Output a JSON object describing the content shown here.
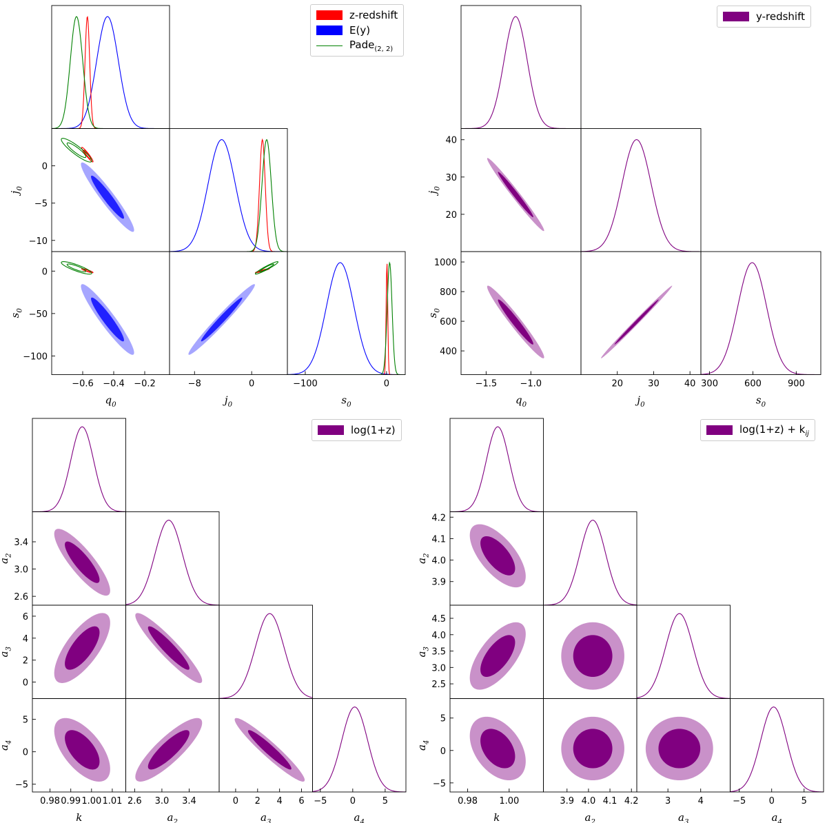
{
  "colors": {
    "z_redshift": "#ff0000",
    "E_y": "#0000ff",
    "pade": "#008000",
    "purple": "#800080",
    "purple_light": "#c991c9"
  },
  "legends": {
    "top_left": {
      "entries": [
        {
          "label": "z-redshift",
          "style": "patch",
          "color_key": "z_redshift"
        },
        {
          "label": "E(y)",
          "style": "patch",
          "color_key": "E_y"
        },
        {
          "label": "Pade",
          "sub": "(2, 2)",
          "style": "line",
          "color_key": "pade"
        }
      ]
    },
    "top_right": {
      "entries": [
        {
          "label": "y-redshift",
          "style": "patch",
          "color_key": "purple"
        }
      ]
    },
    "bottom_left": {
      "entries": [
        {
          "label": "log(1+z)",
          "style": "patch",
          "color_key": "purple"
        }
      ]
    },
    "bottom_right": {
      "entries": [
        {
          "label": "log(1+z) + k",
          "sub": "ij",
          "style": "patch",
          "color_key": "purple"
        }
      ]
    }
  },
  "chart_data": [
    {
      "type": "corner",
      "panel": "top-left",
      "parameters": [
        {
          "name": "q",
          "sub": "0",
          "range": [
            -0.8,
            -0.04
          ],
          "ticks": [
            -0.6,
            -0.4,
            -0.2
          ],
          "tick_labels": [
            "−0.6",
            "−0.4",
            "−0.2"
          ]
        },
        {
          "name": "j",
          "sub": "0",
          "range": [
            -11.5,
            5
          ],
          "ticks": [
            -10,
            -5,
            0
          ],
          "tick_labels": [
            "−10",
            "−5",
            "0"
          ],
          "x_ticks": [
            -8,
            0
          ],
          "x_tick_labels": [
            "−8",
            "0"
          ]
        },
        {
          "name": "s",
          "sub": "0",
          "range": [
            -122,
            23
          ],
          "ticks": [
            -100,
            -50,
            0
          ],
          "tick_labels": [
            "−100",
            "−50",
            "0"
          ],
          "x_ticks": [
            -100,
            0
          ],
          "x_tick_labels": [
            "−100",
            "0"
          ]
        }
      ],
      "series": [
        {
          "name": "z-redshift",
          "color_key": "z_redshift",
          "filled": false,
          "mean": [
            -0.57,
            1.5,
            0.5
          ],
          "std": [
            0.015,
            0.4,
            1.0
          ],
          "corr": [
            [
              1,
              -0.95,
              -0.9
            ],
            [
              -0.95,
              1,
              0.95
            ],
            [
              -0.9,
              0.95,
              1
            ]
          ]
        },
        {
          "name": "E(y)",
          "color_key": "E_y",
          "filled": true,
          "mean": [
            -0.44,
            -4.2,
            -57
          ],
          "std": [
            0.07,
            1.9,
            17
          ],
          "corr": [
            [
              1,
              -0.95,
              -0.94
            ],
            [
              -0.95,
              1,
              0.98
            ],
            [
              -0.94,
              0.98,
              1
            ]
          ]
        },
        {
          "name": "Pade(2,2)",
          "color_key": "pade",
          "filled": false,
          "mean": [
            -0.64,
            2.1,
            3.8
          ],
          "std": [
            0.04,
            0.65,
            3.0
          ],
          "corr": [
            [
              1,
              -0.9,
              -0.85
            ],
            [
              -0.9,
              1,
              0.95
            ],
            [
              -0.85,
              0.95,
              1
            ]
          ]
        }
      ]
    },
    {
      "type": "corner",
      "panel": "top-right",
      "parameters": [
        {
          "name": "q",
          "sub": "0",
          "range": [
            -1.78,
            -0.44
          ],
          "ticks": [
            -1.5,
            -1.0
          ],
          "tick_labels": [
            "−1.5",
            "−1.0"
          ]
        },
        {
          "name": "j",
          "sub": "0",
          "range": [
            10,
            43
          ],
          "ticks": [
            20,
            30,
            40
          ],
          "tick_labels": [
            "20",
            "30",
            "40"
          ]
        },
        {
          "name": "s",
          "sub": "0",
          "range": [
            240,
            1070
          ],
          "ticks": [
            400,
            600,
            800,
            1000
          ],
          "tick_labels": [
            "400",
            "600",
            "800",
            "1000"
          ],
          "x_ticks": [
            300,
            600,
            900
          ],
          "x_tick_labels": [
            "300",
            "600",
            "900"
          ]
        }
      ],
      "series": [
        {
          "name": "y-redshift",
          "color_key": "purple",
          "filled": true,
          "mean": [
            -1.17,
            25.3,
            595
          ],
          "std": [
            0.13,
            4.0,
            100
          ],
          "corr": [
            [
              1,
              -0.985,
              -0.97
            ],
            [
              -0.985,
              1,
              0.996
            ],
            [
              -0.97,
              0.996,
              1
            ]
          ]
        }
      ]
    },
    {
      "type": "corner",
      "panel": "bottom-left",
      "parameters": [
        {
          "name": "k",
          "sub": "",
          "range": [
            0.9715,
            1.0165
          ],
          "ticks": [
            0.98,
            0.99,
            1.0,
            1.01
          ],
          "tick_labels": [
            "0.98",
            "0.99",
            "1.00",
            "1.01"
          ]
        },
        {
          "name": "a",
          "sub": "2",
          "range": [
            2.47,
            3.84
          ],
          "ticks": [
            2.6,
            3.0,
            3.4
          ],
          "tick_labels": [
            "2.6",
            "3.0",
            "3.4"
          ]
        },
        {
          "name": "a",
          "sub": "3",
          "range": [
            -1.5,
            7.0
          ],
          "ticks": [
            0,
            2,
            4,
            6
          ],
          "tick_labels": [
            "0",
            "2",
            "4",
            "6"
          ],
          "x_ticks": [
            0,
            2,
            4,
            6
          ],
          "x_tick_labels": [
            "0",
            "2",
            "4",
            "6"
          ]
        },
        {
          "name": "a",
          "sub": "4",
          "range": [
            -6.2,
            8.2
          ],
          "ticks": [
            -5,
            0,
            5
          ],
          "tick_labels": [
            "−5",
            "0",
            "5"
          ]
        }
      ],
      "series": [
        {
          "name": "log(1+z)",
          "color_key": "purple",
          "filled": true,
          "mean": [
            0.9955,
            3.1,
            3.1,
            0.3
          ],
          "std": [
            0.0055,
            0.2,
            1.3,
            2.0
          ],
          "corr": [
            [
              1,
              -0.85,
              0.72,
              -0.6
            ],
            [
              -0.85,
              1,
              -0.93,
              0.85
            ],
            [
              0.72,
              -0.93,
              1,
              -0.95
            ],
            [
              -0.6,
              0.85,
              -0.95,
              1
            ]
          ]
        }
      ]
    },
    {
      "type": "corner",
      "panel": "bottom-right",
      "parameters": [
        {
          "name": "k",
          "sub": "",
          "range": [
            0.9715,
            1.0165
          ],
          "ticks": [
            0.98,
            1.0
          ],
          "tick_labels": [
            "0.98",
            "1.00"
          ]
        },
        {
          "name": "a",
          "sub": "2",
          "range": [
            3.79,
            4.225
          ],
          "ticks": [
            3.9,
            4.0,
            4.1,
            4.2
          ],
          "tick_labels": [
            "3.9",
            "4.0",
            "4.1",
            "4.2"
          ]
        },
        {
          "name": "a",
          "sub": "3",
          "range": [
            2.05,
            4.9
          ],
          "ticks": [
            2.5,
            3.0,
            3.5,
            4.0,
            4.5
          ],
          "tick_labels": [
            "2.5",
            "3.0",
            "3.5",
            "4.0",
            "4.5"
          ],
          "x_ticks": [
            3,
            4
          ],
          "x_tick_labels": [
            "3",
            "4"
          ]
        },
        {
          "name": "a",
          "sub": "4",
          "range": [
            -6.4,
            8.0
          ],
          "ticks": [
            -5,
            0,
            5
          ],
          "tick_labels": [
            "−5",
            "0",
            "5"
          ]
        }
      ],
      "series": [
        {
          "name": "log(1+z) + kij",
          "color_key": "purple",
          "filled": true,
          "mean": [
            0.9945,
            4.02,
            3.35,
            0.3
          ],
          "std": [
            0.0055,
            0.06,
            0.42,
            2.0
          ],
          "corr": [
            [
              1,
              -0.65,
              0.65,
              -0.4
            ],
            [
              -0.65,
              1,
              0,
              0
            ],
            [
              0.65,
              0,
              1,
              0
            ],
            [
              -0.4,
              0,
              0,
              1
            ]
          ]
        }
      ]
    }
  ]
}
